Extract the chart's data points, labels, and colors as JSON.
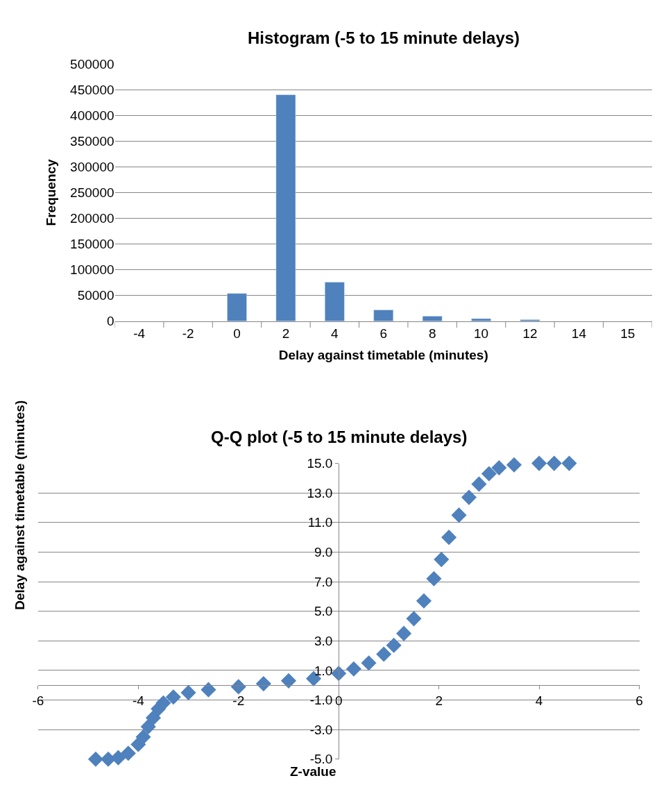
{
  "chart_data": [
    {
      "type": "bar",
      "title": "Histogram (-5 to 15 minute delays)",
      "xlabel": "Delay against timetable (minutes)",
      "ylabel": "Frequency",
      "categories": [
        "-4",
        "-2",
        "0",
        "2",
        "4",
        "6",
        "8",
        "10",
        "12",
        "14",
        "15"
      ],
      "values": [
        null,
        null,
        54000,
        440000,
        76000,
        22000,
        10000,
        5000,
        3000,
        null,
        null
      ],
      "color": "#4f81bd",
      "ylim": [
        0,
        500000
      ],
      "yticks": [
        0,
        50000,
        100000,
        150000,
        200000,
        250000,
        300000,
        350000,
        400000,
        450000,
        500000
      ],
      "grid": "y"
    },
    {
      "type": "scatter",
      "title": "Q-Q plot (-5 to 15 minute delays)",
      "xlabel": "Z-value",
      "ylabel": "Delay against timetable (minutes)",
      "marker": "diamond",
      "color": "#4f81bd",
      "x": [
        -4.85,
        -4.6,
        -4.4,
        -4.2,
        -4.0,
        -3.9,
        -3.8,
        -3.7,
        -3.6,
        -3.5,
        -3.3,
        -3.0,
        -2.6,
        -2.0,
        -1.5,
        -1.0,
        -0.5,
        0,
        0.3,
        0.6,
        0.9,
        1.1,
        1.3,
        1.5,
        1.7,
        1.9,
        2.05,
        2.2,
        2.4,
        2.6,
        2.8,
        3.0,
        3.2,
        3.5,
        4.0,
        4.3,
        4.6
      ],
      "values": [
        -5,
        -5,
        -4.9,
        -4.6,
        -4.0,
        -3.5,
        -2.8,
        -2.2,
        -1.6,
        -1.2,
        -0.8,
        -0.5,
        -0.3,
        -0.1,
        0.1,
        0.3,
        0.45,
        0.8,
        1.1,
        1.5,
        2.1,
        2.7,
        3.5,
        4.5,
        5.7,
        7.2,
        8.5,
        10.0,
        11.5,
        12.7,
        13.6,
        14.3,
        14.7,
        14.9,
        15.0,
        15.0,
        15.0
      ],
      "xlim": [
        -6,
        6
      ],
      "xticks": [
        -6,
        -4,
        -2,
        0,
        2,
        4,
        6
      ],
      "ylim": [
        -5,
        15
      ],
      "yticks": [
        {
          "value": 15,
          "label": "15.0"
        },
        {
          "value": 13,
          "label": "13.0"
        },
        {
          "value": 11,
          "label": "11.0"
        },
        {
          "value": 9,
          "label": "9.0"
        },
        {
          "value": 7,
          "label": "7.0"
        },
        {
          "value": 5,
          "label": "5.0"
        },
        {
          "value": 3,
          "label": "3.0"
        },
        {
          "value": 1,
          "label": "1.0"
        },
        {
          "value": -1,
          "label": "-1.0"
        },
        {
          "value": -3,
          "label": "-3.0"
        },
        {
          "value": -5,
          "label": "-5.0"
        }
      ],
      "grid": "y"
    }
  ]
}
